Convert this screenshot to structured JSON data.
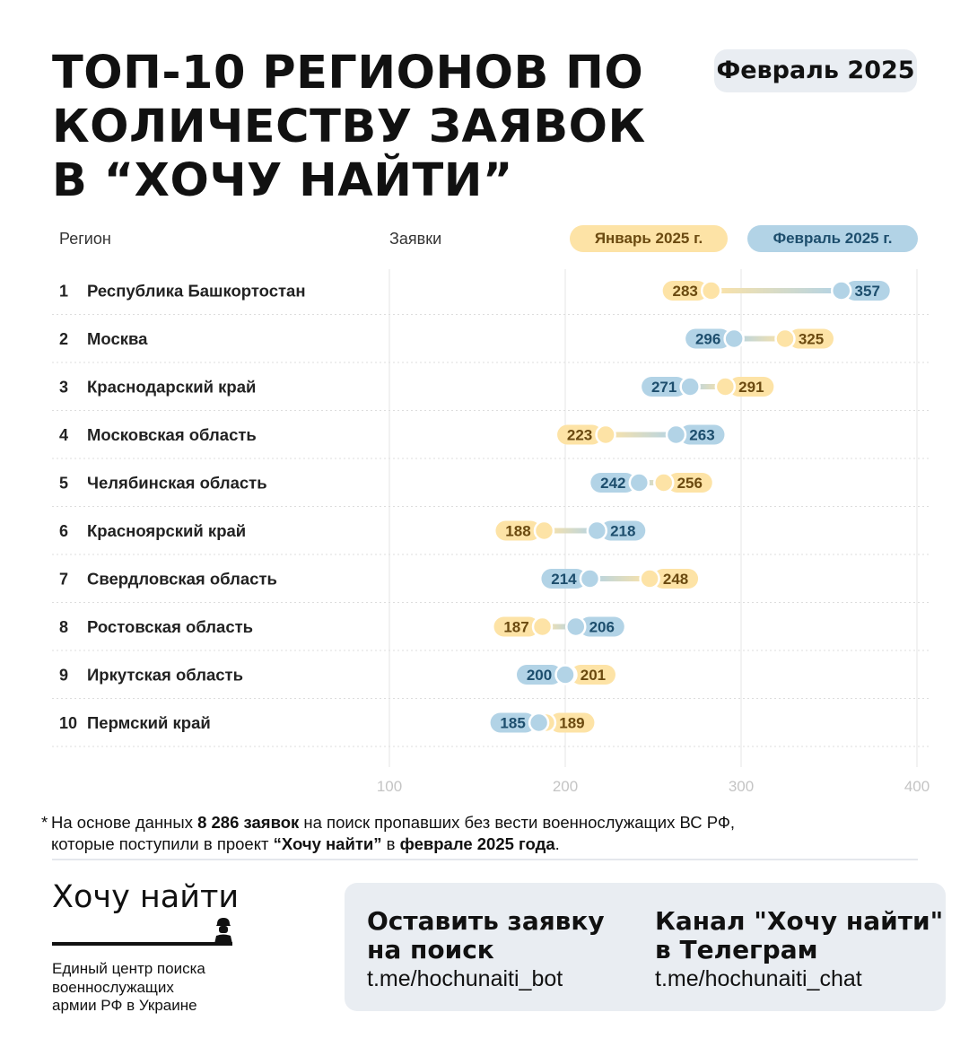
{
  "title_lines": [
    "ТОП-10 РЕГИОНОВ ПО",
    "КОЛИЧЕСТВУ ЗАЯВОК",
    "В “ХОЧУ НАЙТИ”"
  ],
  "period_badge": "Февраль 2025",
  "headers": {
    "region": "Регион",
    "requests": "Заявки"
  },
  "legend": {
    "january": "Январь 2025 г.",
    "february": "Февраль 2025 г."
  },
  "colors": {
    "january_fill": "#fde3a6",
    "january_text": "#6b4a10",
    "february_fill": "#b2d3e6",
    "february_text": "#1d4e6d",
    "grid": "#e6e6e6",
    "row_divider": "#dddddd",
    "tick": "#c4c4c4"
  },
  "chart_data": {
    "type": "dumbbell",
    "categories": [
      "Республика Башкортостан",
      "Москва",
      "Краснодарский край",
      "Московская область",
      "Челябинская область",
      "Красноярский край",
      "Свердловская область",
      "Ростовская область",
      "Иркутская область",
      "Пермский край"
    ],
    "ranks": [
      "1",
      "2",
      "3",
      "4",
      "5",
      "6",
      "7",
      "8",
      "9",
      "10"
    ],
    "series": [
      {
        "name": "Январь 2025 г.",
        "values": [
          283,
          325,
          291,
          223,
          256,
          188,
          248,
          187,
          201,
          189
        ]
      },
      {
        "name": "Февраль 2025 г.",
        "values": [
          357,
          296,
          271,
          263,
          242,
          218,
          214,
          206,
          200,
          185
        ]
      }
    ],
    "xlim": [
      100,
      400
    ],
    "xticks": [
      100,
      200,
      300,
      400
    ],
    "grid": true
  },
  "footnote": {
    "star": "*",
    "line1": [
      {
        "text": "На основе данных ",
        "bold": false
      },
      {
        "text": "8 286 заявок",
        "bold": true
      },
      {
        "text": " на поиск пропавших без вести военнослужащих ВС РФ,",
        "bold": false
      }
    ],
    "line2": [
      {
        "text": "которые поступили в проект ",
        "bold": false
      },
      {
        "text": "“Хочу найти”",
        "bold": true
      },
      {
        "text": " в ",
        "bold": false
      },
      {
        "text": "феврале 2025 года",
        "bold": true
      },
      {
        "text": ".",
        "bold": false
      }
    ]
  },
  "brand": {
    "name": "Хочу найти",
    "tagline_lines": [
      "Единый центр поиска",
      "военнослужащих",
      "армии РФ в Украине"
    ]
  },
  "cta": {
    "bot": {
      "title_lines": [
        "Оставить заявку",
        "на поиск"
      ],
      "link": "t.me/hochunaiti_bot"
    },
    "channel": {
      "title_lines": [
        "Канал \"Хочу найти\"",
        "в Телеграм"
      ],
      "link": "t.me/hochunaiti_chat"
    }
  }
}
